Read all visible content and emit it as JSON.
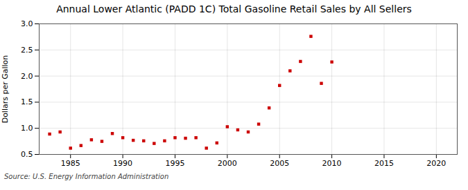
{
  "chart_data": {
    "type": "scatter",
    "title": "Annual Lower Atlantic (PADD 1C) Total Gasoline Retail Sales by All Sellers",
    "ylabel": "Dollars per Gallon",
    "source": "Source: U.S. Energy Information Administration",
    "x": [
      1983,
      1984,
      1985,
      1986,
      1987,
      1988,
      1989,
      1990,
      1991,
      1992,
      1993,
      1994,
      1995,
      1996,
      1997,
      1998,
      1999,
      2000,
      2001,
      2002,
      2003,
      2004,
      2005,
      2006,
      2007,
      2008,
      2009,
      2010
    ],
    "values": [
      0.89,
      0.93,
      0.62,
      0.67,
      0.78,
      0.75,
      0.9,
      0.82,
      0.77,
      0.76,
      0.71,
      0.76,
      0.82,
      0.81,
      0.82,
      0.62,
      0.72,
      1.03,
      0.97,
      0.93,
      1.08,
      1.39,
      1.82,
      2.1,
      2.28,
      2.76,
      1.86,
      2.27
    ],
    "color": "#cc0000",
    "marker": "square",
    "xlim": [
      1982,
      2022
    ],
    "ylim": [
      0.5,
      3.0
    ],
    "xticks": [
      1985,
      1990,
      1995,
      2000,
      2005,
      2010,
      2015,
      2020
    ],
    "yticks": [
      0.5,
      {
        "value": 1.0,
        "label": "1.0"
      },
      1.5,
      {
        "value": 2.0,
        "label": "2.0"
      },
      2.5,
      {
        "value": 3.0,
        "label": "3.0"
      }
    ],
    "grid": true
  }
}
